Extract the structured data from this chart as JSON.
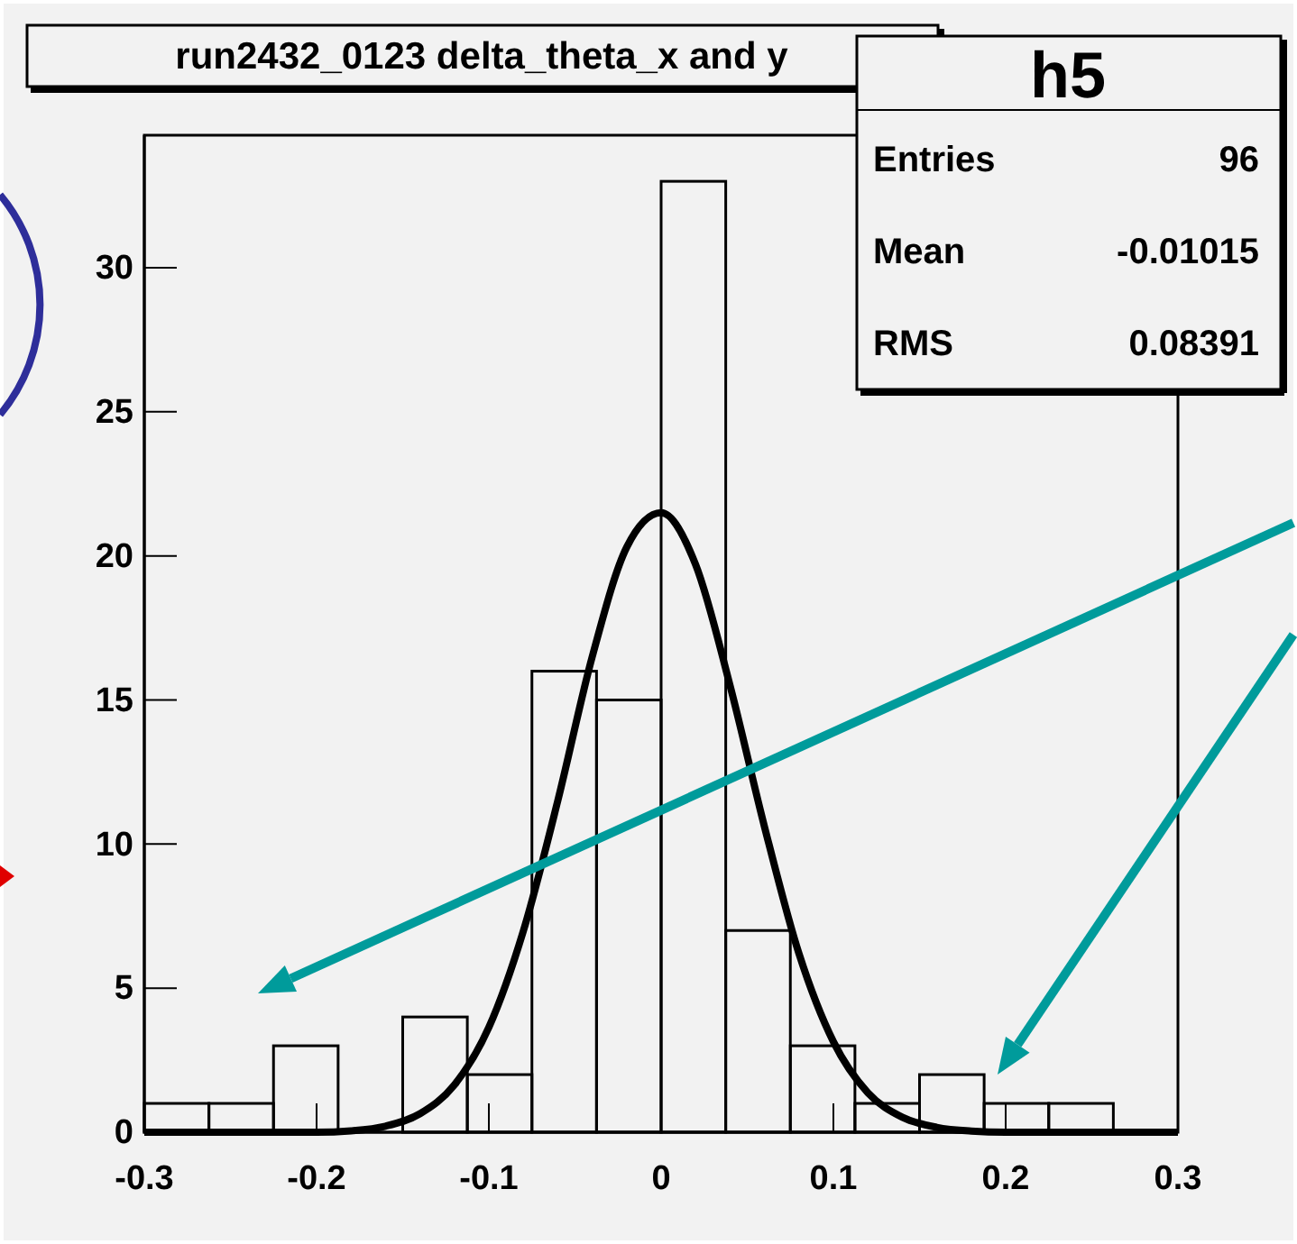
{
  "chart_data": {
    "type": "histogram",
    "title": "run2432_0123 delta_theta_x and y",
    "annotations": [
      "h5",
      "Entries",
      "96",
      "Mean",
      "-0.01015",
      "RMS",
      "0.08391"
    ],
    "bins": [
      -0.3,
      -0.2625,
      -0.225,
      -0.1875,
      -0.15,
      -0.1125,
      -0.075,
      -0.0375,
      0,
      0.0375,
      0.075,
      0.1125,
      0.15,
      0.1875,
      0.225,
      0.2625,
      0.3
    ],
    "series": [
      {
        "color": "#000000",
        "values": [
          1,
          1,
          3,
          0,
          4,
          2,
          16,
          15,
          33,
          7,
          3,
          1,
          2,
          1,
          1,
          0
        ]
      },
      {
        "type": "line",
        "color": "#000000",
        "x": [
          -0.3,
          -0.25,
          -0.2,
          -0.18,
          -0.16,
          -0.14,
          -0.12,
          -0.1,
          -0.08,
          -0.06,
          -0.04,
          -0.02,
          0,
          0.02,
          0.04,
          0.06,
          0.08,
          0.1,
          0.12,
          0.14,
          0.16,
          0.18,
          0.2,
          0.25,
          0.3
        ],
        "values": [
          0,
          0,
          0,
          0.05,
          0.21,
          0.64,
          1.64,
          3.64,
          6.98,
          11.5,
          16.5,
          20.3,
          21.5,
          19.7,
          15.5,
          10.6,
          6.2,
          3.14,
          1.37,
          0.52,
          0.17,
          0.04,
          0,
          0,
          0
        ]
      }
    ],
    "xlim": [
      -0.3,
      0.3
    ],
    "ylim": [
      0,
      34.6
    ],
    "xticks": [
      -0.3,
      -0.2,
      -0.1,
      0,
      0.1,
      0.2,
      0.3
    ],
    "yticks": [
      0,
      5,
      10,
      15,
      20,
      25,
      30
    ],
    "grid": false,
    "marker": "none",
    "line_style": "solid"
  }
}
